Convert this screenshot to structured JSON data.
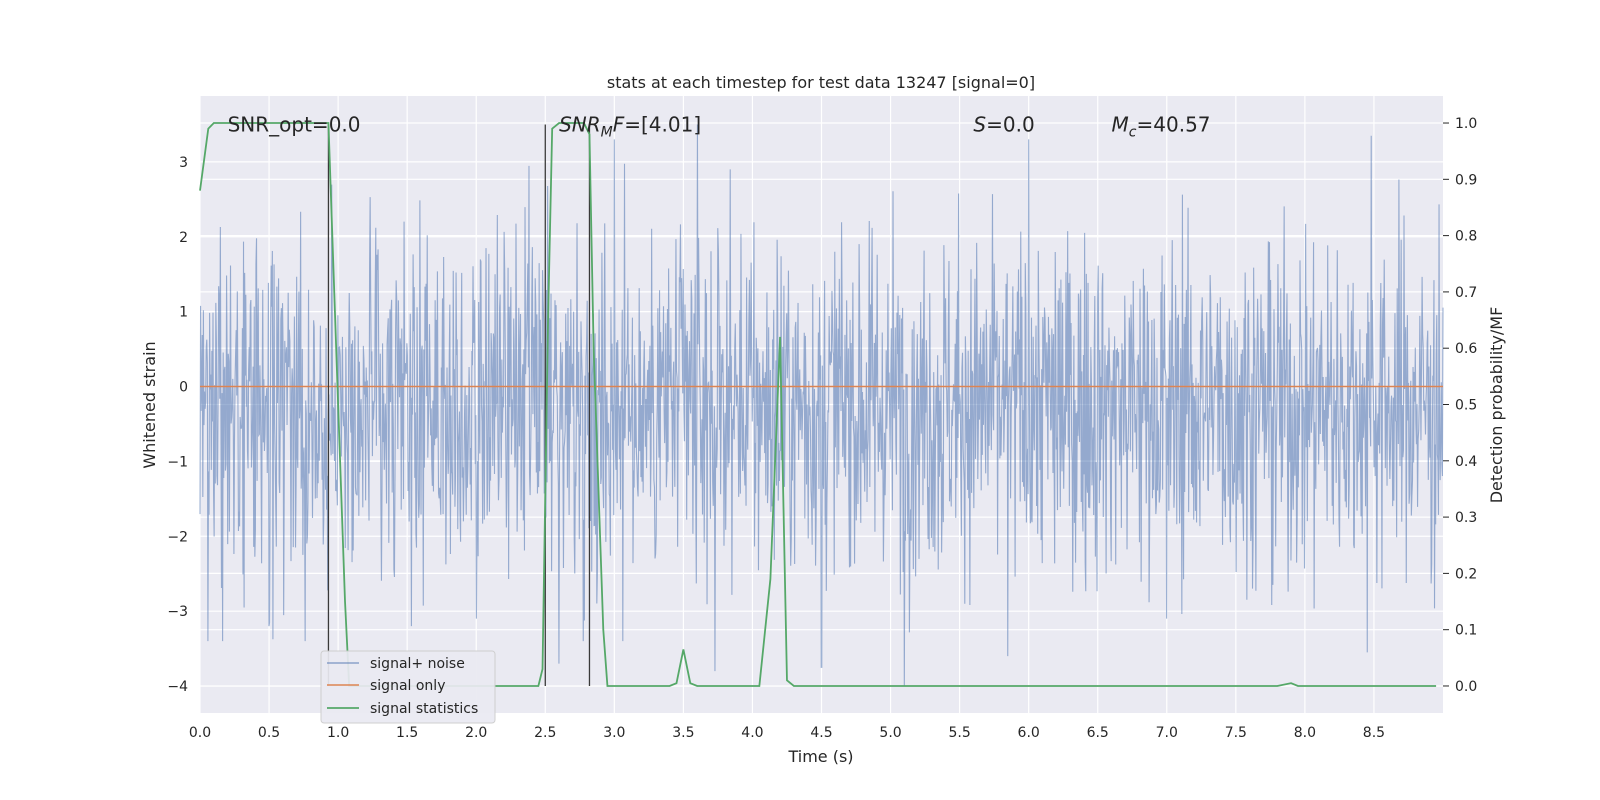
{
  "chart_data": {
    "type": "line",
    "title": "stats at each timestep for test data 13247 [signal=0]",
    "xlabel": "Time (s)",
    "ylabel_left": "Whitened strain",
    "ylabel_right": "Detection probability/MF",
    "xlim": [
      0.0,
      9.0
    ],
    "ylim_left": [
      -4.36,
      3.88
    ],
    "ylim_right": [
      -0.048,
      1.048
    ],
    "x_ticks": [
      "0.0",
      "0.5",
      "1.0",
      "1.5",
      "2.0",
      "2.5",
      "3.0",
      "3.5",
      "4.0",
      "4.5",
      "5.0",
      "5.5",
      "6.0",
      "6.5",
      "7.0",
      "7.5",
      "8.0",
      "8.5"
    ],
    "x_tick_values": [
      0.0,
      0.5,
      1.0,
      1.5,
      2.0,
      2.5,
      3.0,
      3.5,
      4.0,
      4.5,
      5.0,
      5.5,
      6.0,
      6.5,
      7.0,
      7.5,
      8.0,
      8.5
    ],
    "y_left_ticks": [
      "3",
      "2",
      "1",
      "0",
      "−1",
      "−2",
      "−3",
      "−4"
    ],
    "y_left_tick_values": [
      3,
      2,
      1,
      0,
      -1,
      -2,
      -3,
      -4
    ],
    "y_right_ticks": [
      "1.0",
      "0.9",
      "0.8",
      "0.7",
      "0.6",
      "0.5",
      "0.4",
      "0.3",
      "0.2",
      "0.1",
      "0.0"
    ],
    "y_right_tick_values": [
      1.0,
      0.9,
      0.8,
      0.7,
      0.6,
      0.5,
      0.4,
      0.3,
      0.2,
      0.1,
      0.0
    ],
    "grid": true,
    "legend_position": "lower-left",
    "annotations": [
      {
        "text": "SNR_opt=0.0",
        "x": 0.2,
        "y": 3.5
      },
      {
        "base": "SNR",
        "sub": "M",
        "rest": "F=[4.01]",
        "x": 2.6,
        "y": 3.5,
        "italic": true
      },
      {
        "base": "S",
        "rest": "=0.0",
        "x": 5.6,
        "y": 3.5,
        "italic": true
      },
      {
        "base": "M",
        "sub": "c",
        "rest": "=40.57",
        "x": 6.6,
        "y": 3.5,
        "italic": true
      }
    ],
    "vlines": [
      {
        "x": 0.93,
        "y0": -4.0,
        "y1": 3.5
      },
      {
        "x": 2.5,
        "y0": -4.0,
        "y1": 3.5
      },
      {
        "x": 2.82,
        "y0": -4.0,
        "y1": 3.5
      }
    ],
    "series": [
      {
        "name": "signal+ noise",
        "axis": "left",
        "color": "#4c72b0",
        "kind": "noise",
        "envelope_typical": [
          -1.75,
          1.25
        ],
        "envelope_extreme": [
          -4.0,
          3.5
        ],
        "notable_spikes": [
          {
            "x": 0.5,
            "y": -3.2
          },
          {
            "x": 1.53,
            "y": -3.2
          },
          {
            "x": 2.0,
            "y": -3.1
          },
          {
            "x": 2.6,
            "y": -3.7
          },
          {
            "x": 3.0,
            "y": 3.3
          },
          {
            "x": 3.6,
            "y": 3.5
          },
          {
            "x": 3.73,
            "y": -3.8
          },
          {
            "x": 4.5,
            "y": -3.75
          },
          {
            "x": 5.1,
            "y": -4.0
          },
          {
            "x": 5.85,
            "y": -3.6
          },
          {
            "x": 6.0,
            "y": 3.3
          },
          {
            "x": 7.0,
            "y": -3.1
          },
          {
            "x": 8.45,
            "y": -3.55
          },
          {
            "x": 8.48,
            "y": 3.35
          }
        ]
      },
      {
        "name": "signal only",
        "axis": "left",
        "color": "#dd8452",
        "x": [
          0.0,
          9.0
        ],
        "y": [
          0.0,
          0.0
        ]
      },
      {
        "name": "signal statistics",
        "axis": "right",
        "color": "#55a868",
        "x": [
          0.0,
          0.06,
          0.1,
          0.3,
          0.6,
          0.93,
          1.0,
          1.05,
          1.08,
          1.2,
          2.0,
          2.45,
          2.48,
          2.52,
          2.55,
          2.6,
          2.78,
          2.82,
          2.85,
          2.92,
          2.95,
          3.4,
          3.45,
          3.5,
          3.55,
          3.6,
          4.05,
          4.13,
          4.2,
          4.25,
          4.3,
          7.8,
          7.9,
          7.95,
          8.95
        ],
        "y": [
          0.88,
          0.99,
          1.0,
          1.0,
          1.0,
          1.0,
          0.5,
          0.15,
          0.0,
          0.0,
          0.0,
          0.0,
          0.03,
          0.65,
          0.99,
          1.0,
          1.0,
          0.98,
          0.6,
          0.1,
          0.0,
          0.0,
          0.005,
          0.065,
          0.005,
          0.0,
          0.0,
          0.19,
          0.62,
          0.01,
          0.0,
          0.0,
          0.005,
          0.0,
          0.0
        ]
      }
    ]
  }
}
